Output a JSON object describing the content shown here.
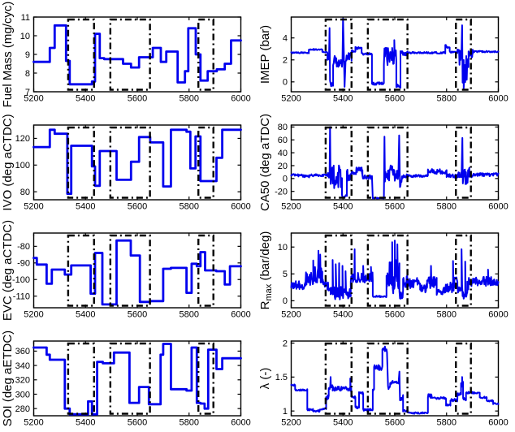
{
  "figure": {
    "background": "#ffffff",
    "trace_color": "#0000ee",
    "axis_color": "#000000",
    "highlight_color": "#000000",
    "xlim": [
      5200,
      6000
    ],
    "xticks": [
      5200,
      5400,
      5600,
      5800,
      6000
    ],
    "highlight_regions": [
      [
        5333,
        5433
      ],
      [
        5496,
        5649
      ],
      [
        5836,
        5894
      ]
    ],
    "rows": 4,
    "cols": 2
  },
  "chart_data": [
    {
      "type": "line",
      "style": "step",
      "ylabel": "Fuel Mass (mg/cyc)",
      "ylim": [
        7,
        11
      ],
      "yticks": [
        7,
        8,
        9,
        10,
        11
      ],
      "steps": [
        [
          5200,
          8.6
        ],
        [
          5262,
          9.35
        ],
        [
          5281,
          10.55
        ],
        [
          5325,
          8.65
        ],
        [
          5339,
          7.4
        ],
        [
          5425,
          7.55
        ],
        [
          5437,
          10.1
        ],
        [
          5455,
          8.8
        ],
        [
          5472,
          8.75
        ],
        [
          5545,
          8.5
        ],
        [
          5576,
          8.3
        ],
        [
          5607,
          8.85
        ],
        [
          5660,
          9.35
        ],
        [
          5691,
          8.6
        ],
        [
          5712,
          9.15
        ],
        [
          5756,
          7.5
        ],
        [
          5784,
          8.1
        ],
        [
          5797,
          10.4
        ],
        [
          5826,
          9.0
        ],
        [
          5844,
          7.6
        ],
        [
          5872,
          8.1
        ],
        [
          5907,
          8.2
        ],
        [
          5938,
          8.5
        ],
        [
          5962,
          9.75
        ]
      ]
    },
    {
      "type": "line",
      "style": "noisy",
      "ylabel": "IMEP (bar)",
      "ylim": [
        -0.9,
        5.9
      ],
      "yticks": [
        0,
        2,
        4
      ],
      "segments": [
        [
          5200,
          5268,
          2.65,
          0.06
        ],
        [
          5268,
          5320,
          2.95,
          0.06
        ],
        [
          5320,
          5340,
          2.7,
          0.06
        ],
        [
          5340,
          5346,
          2.3,
          0.4
        ],
        [
          5352,
          5362,
          -0.25,
          0.2
        ],
        [
          5362,
          5398,
          2.0,
          0.7
        ],
        [
          5410,
          5433,
          2.3,
          0.45
        ],
        [
          5433,
          5448,
          2.8,
          0.1
        ],
        [
          5448,
          5472,
          3.05,
          0.12
        ],
        [
          5472,
          5512,
          2.55,
          0.1
        ],
        [
          5512,
          5558,
          -0.15,
          0.12
        ],
        [
          5558,
          5606,
          2.3,
          0.8
        ],
        [
          5606,
          5622,
          -0.3,
          0.25
        ],
        [
          5622,
          5650,
          2.6,
          0.2
        ],
        [
          5650,
          5795,
          2.65,
          0.08
        ],
        [
          5795,
          5812,
          3.2,
          0.18
        ],
        [
          5812,
          5842,
          2.7,
          0.1
        ],
        [
          5842,
          5858,
          2.2,
          0.8
        ],
        [
          5862,
          5885,
          1.2,
          1.5
        ],
        [
          5885,
          5902,
          2.5,
          0.45
        ],
        [
          5902,
          6000,
          2.75,
          0.07
        ]
      ],
      "spikes": [
        [
          5348,
          4.9
        ],
        [
          5350,
          0.1
        ],
        [
          5400,
          5.75
        ],
        [
          5403,
          3.0
        ],
        [
          5406,
          -0.45
        ],
        [
          5598,
          3.8
        ],
        [
          5860,
          5.15
        ],
        [
          5866,
          -0.6
        ]
      ]
    },
    {
      "type": "line",
      "style": "step",
      "ylabel": "IVO (deg aCTDC)",
      "ylim": [
        74,
        130
      ],
      "yticks": [
        80,
        100,
        120
      ],
      "steps": [
        [
          5200,
          113.5
        ],
        [
          5262,
          126.5
        ],
        [
          5281,
          123.5
        ],
        [
          5330,
          78.5
        ],
        [
          5345,
          114.5
        ],
        [
          5425,
          99
        ],
        [
          5437,
          84.5
        ],
        [
          5455,
          110.5
        ],
        [
          5520,
          89
        ],
        [
          5576,
          102.5
        ],
        [
          5607,
          121
        ],
        [
          5650,
          117
        ],
        [
          5700,
          84
        ],
        [
          5730,
          126.5
        ],
        [
          5790,
          125
        ],
        [
          5805,
          97.5
        ],
        [
          5825,
          121.5
        ],
        [
          5844,
          88
        ],
        [
          5906,
          105.5
        ],
        [
          5928,
          126.5
        ]
      ]
    },
    {
      "type": "line",
      "style": "noisy",
      "ylabel": "CA50 (deg aTDC)",
      "ylim": [
        -33,
        83
      ],
      "yticks": [
        -20,
        0,
        20,
        40,
        60,
        80
      ],
      "segments": [
        [
          5200,
          5245,
          5,
          2
        ],
        [
          5245,
          5270,
          3.5,
          2
        ],
        [
          5270,
          5340,
          5,
          2
        ],
        [
          5340,
          5348,
          5,
          4
        ],
        [
          5352,
          5396,
          3,
          18
        ],
        [
          5396,
          5415,
          -27,
          2.5
        ],
        [
          5415,
          5433,
          5,
          9
        ],
        [
          5433,
          5448,
          8,
          3
        ],
        [
          5448,
          5475,
          12,
          6
        ],
        [
          5475,
          5512,
          2,
          3
        ],
        [
          5515,
          5558,
          -30.5,
          0.8
        ],
        [
          5562,
          5600,
          8,
          13
        ],
        [
          5602,
          5614,
          5,
          9
        ],
        [
          5620,
          5630,
          -5,
          9
        ],
        [
          5630,
          5650,
          4,
          3
        ],
        [
          5650,
          5728,
          4,
          2
        ],
        [
          5728,
          5800,
          11,
          4
        ],
        [
          5800,
          5842,
          4,
          3
        ],
        [
          5842,
          5858,
          6,
          5
        ],
        [
          5863,
          5888,
          0,
          17
        ],
        [
          5888,
          5902,
          5,
          4
        ],
        [
          5902,
          6000,
          6,
          2.5
        ]
      ],
      "spikes": [
        [
          5350,
          80
        ],
        [
          5560,
          65
        ],
        [
          5617,
          67
        ],
        [
          5861,
          63
        ]
      ]
    },
    {
      "type": "line",
      "style": "step",
      "ylabel": "EVC (deg aCTDC)",
      "ylim": [
        -117,
        -72
      ],
      "yticks": [
        -110,
        -100,
        -90,
        -80
      ],
      "steps": [
        [
          5200,
          -87
        ],
        [
          5212,
          -91
        ],
        [
          5250,
          -102.5
        ],
        [
          5270,
          -94
        ],
        [
          5320,
          -97
        ],
        [
          5345,
          -91.5
        ],
        [
          5420,
          -108.5
        ],
        [
          5437,
          -84
        ],
        [
          5465,
          -115
        ],
        [
          5520,
          -76.5
        ],
        [
          5575,
          -85.5
        ],
        [
          5610,
          -113.5
        ],
        [
          5650,
          -113
        ],
        [
          5700,
          -93.5
        ],
        [
          5730,
          -93
        ],
        [
          5790,
          -108
        ],
        [
          5810,
          -90.5
        ],
        [
          5830,
          -92
        ],
        [
          5844,
          -83.5
        ],
        [
          5862,
          -94.5
        ],
        [
          5905,
          -95
        ],
        [
          5938,
          -103
        ],
        [
          5958,
          -92
        ]
      ]
    },
    {
      "type": "line",
      "style": "noisy",
      "ylabel": "R_{max} (bar/deg)",
      "ylim": [
        -1.3,
        12.6
      ],
      "yticks": [
        0,
        5,
        10
      ],
      "segments": [
        [
          5200,
          5255,
          2.9,
          0.8
        ],
        [
          5255,
          5290,
          4.0,
          1.3
        ],
        [
          5290,
          5320,
          4.8,
          1.6
        ],
        [
          5320,
          5338,
          3.2,
          0.9
        ],
        [
          5338,
          5352,
          2.6,
          0.8
        ],
        [
          5352,
          5430,
          1.5,
          1.3
        ],
        [
          5430,
          5500,
          4.3,
          1.0
        ],
        [
          5500,
          5515,
          4.5,
          1.1
        ],
        [
          5515,
          5568,
          0.8,
          0.15
        ],
        [
          5568,
          5618,
          4.5,
          3.2
        ],
        [
          5618,
          5632,
          1.2,
          0.9
        ],
        [
          5632,
          5650,
          3.5,
          1.1
        ],
        [
          5650,
          5698,
          3.3,
          1.0
        ],
        [
          5698,
          5725,
          2.2,
          0.9
        ],
        [
          5725,
          5762,
          3.4,
          1.1
        ],
        [
          5762,
          5795,
          1.9,
          0.8
        ],
        [
          5795,
          5830,
          2.5,
          1.1
        ],
        [
          5830,
          5842,
          3.5,
          0.9
        ],
        [
          5842,
          5862,
          2.0,
          1.3
        ],
        [
          5862,
          5880,
          1.0,
          0.7
        ],
        [
          5880,
          5902,
          3.2,
          1.1
        ],
        [
          5902,
          6000,
          3.6,
          0.9
        ]
      ],
      "spikes": [
        [
          5285,
          7.5
        ],
        [
          5305,
          9.3
        ],
        [
          5312,
          8.6
        ],
        [
          5360,
          7.6
        ],
        [
          5372,
          6.8
        ],
        [
          5385,
          7.0
        ],
        [
          5398,
          6.5
        ],
        [
          5410,
          5.5
        ],
        [
          5445,
          9.6
        ],
        [
          5478,
          6.5
        ],
        [
          5508,
          6.3
        ],
        [
          5590,
          10.9
        ],
        [
          5600,
          11.2
        ],
        [
          5610,
          10.5
        ],
        [
          5740,
          6.5
        ],
        [
          5825,
          7.4
        ],
        [
          5858,
          9.6
        ],
        [
          5872,
          7.3
        ],
        [
          5960,
          5.8
        ]
      ]
    },
    {
      "type": "line",
      "style": "step",
      "ylabel": "SOI (deg aETDC)",
      "ylim": [
        270,
        374
      ],
      "yticks": [
        280,
        300,
        320,
        340,
        360
      ],
      "steps": [
        [
          5200,
          365
        ],
        [
          5250,
          355
        ],
        [
          5262,
          348
        ],
        [
          5320,
          280
        ],
        [
          5339,
          272
        ],
        [
          5410,
          290
        ],
        [
          5425,
          272
        ],
        [
          5445,
          345
        ],
        [
          5467,
          343
        ],
        [
          5510,
          358
        ],
        [
          5570,
          288
        ],
        [
          5607,
          310
        ],
        [
          5645,
          286
        ],
        [
          5690,
          355
        ],
        [
          5700,
          370
        ],
        [
          5730,
          307
        ],
        [
          5790,
          305
        ],
        [
          5810,
          365
        ],
        [
          5830,
          288
        ],
        [
          5844,
          287
        ],
        [
          5860,
          280
        ],
        [
          5874,
          362
        ],
        [
          5906,
          335
        ],
        [
          5928,
          350
        ]
      ]
    },
    {
      "type": "line",
      "style": "noisy",
      "ylabel": "λ (-)",
      "ylim": [
        0.93,
        2.03
      ],
      "yticks": [
        1,
        1.5,
        2
      ],
      "segments": [
        [
          5200,
          5215,
          1.38,
          0.012
        ],
        [
          5215,
          5262,
          1.31,
          0.012
        ],
        [
          5262,
          5285,
          1.02,
          0.015
        ],
        [
          5285,
          5310,
          1.0,
          0.012
        ],
        [
          5310,
          5335,
          1.03,
          0.012
        ],
        [
          5335,
          5345,
          1.2,
          0.03
        ],
        [
          5345,
          5360,
          1.36,
          0.04
        ],
        [
          5360,
          5432,
          1.33,
          0.035
        ],
        [
          5432,
          5448,
          1.2,
          0.02
        ],
        [
          5448,
          5462,
          1.05,
          0.02
        ],
        [
          5462,
          5478,
          1.28,
          0.03
        ],
        [
          5478,
          5515,
          1.02,
          0.02
        ],
        [
          5515,
          5520,
          1.3,
          0.05
        ],
        [
          5520,
          5552,
          1.64,
          0.04
        ],
        [
          5552,
          5570,
          1.89,
          0.04
        ],
        [
          5574,
          5582,
          1.35,
          0.04
        ],
        [
          5582,
          5615,
          1.42,
          0.025
        ],
        [
          5620,
          5632,
          1.2,
          0.05
        ],
        [
          5632,
          5650,
          1.0,
          0.015
        ],
        [
          5650,
          5728,
          0.97,
          0.012
        ],
        [
          5728,
          5742,
          1.22,
          0.03
        ],
        [
          5742,
          5798,
          1.19,
          0.015
        ],
        [
          5798,
          5815,
          1.09,
          0.015
        ],
        [
          5815,
          5842,
          1.16,
          0.02
        ],
        [
          5842,
          5856,
          1.25,
          0.02
        ],
        [
          5856,
          5864,
          1.38,
          0.05
        ],
        [
          5864,
          5875,
          1.18,
          0.03
        ],
        [
          5875,
          5902,
          1.27,
          0.015
        ],
        [
          5902,
          5928,
          1.27,
          0.012
        ],
        [
          5928,
          5955,
          1.2,
          0.015
        ],
        [
          5955,
          5980,
          1.15,
          0.012
        ],
        [
          5980,
          6000,
          1.11,
          0.012
        ]
      ],
      "spikes": [
        [
          5352,
          1.5
        ],
        [
          5428,
          1.48
        ],
        [
          5562,
          1.95
        ],
        [
          5618,
          1.58
        ],
        [
          5860,
          1.5
        ]
      ]
    }
  ]
}
